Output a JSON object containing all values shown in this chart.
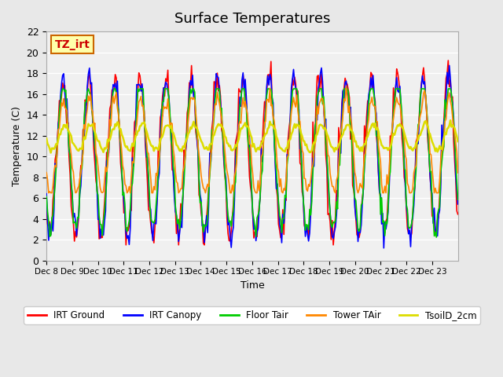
{
  "title": "Surface Temperatures",
  "xlabel": "Time",
  "ylabel": "Temperature (C)",
  "ylim": [
    0,
    22
  ],
  "annotation": "TZ_irt",
  "legend": [
    "IRT Ground",
    "IRT Canopy",
    "Floor Tair",
    "Tower TAir",
    "TsoilD_2cm"
  ],
  "line_colors": [
    "#ff0000",
    "#0000ff",
    "#00cc00",
    "#ff8800",
    "#dddd00"
  ],
  "line_widths": [
    1.2,
    1.2,
    1.2,
    1.2,
    1.8
  ],
  "bg_color": "#e8e8e8",
  "plot_bg": "#f0f0f0",
  "grid_color": "#ffffff",
  "n_days": 16,
  "tick_labels": [
    "Dec 8",
    "Dec 9",
    "Dec 10",
    "Dec 11",
    "Dec 12",
    "Dec 13",
    "Dec 14",
    "Dec 15",
    "Dec 16",
    "Dec 17",
    "Dec 18",
    "Dec 19",
    "Dec 20",
    "Dec 21",
    "Dec 22",
    "Dec 23"
  ]
}
